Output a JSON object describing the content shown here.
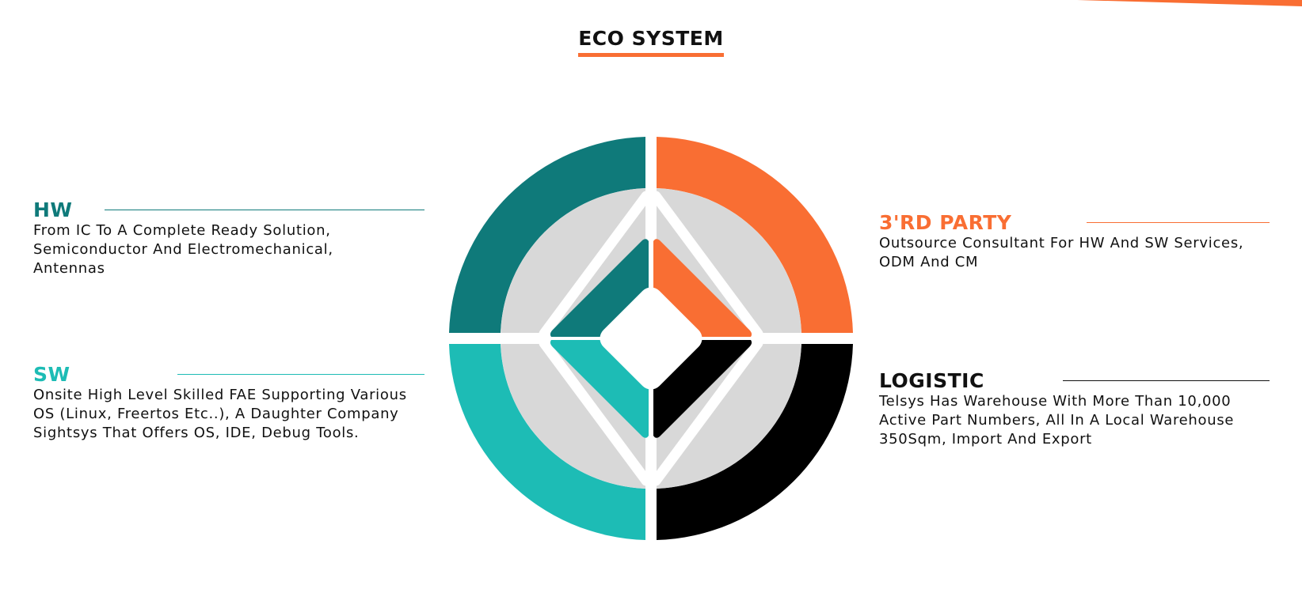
{
  "title": "ECO SYSTEM",
  "colors": {
    "teal_dark": "#0f7a7a",
    "teal_light": "#1dbcb5",
    "orange": "#f96e33",
    "black": "#000000",
    "grey": "#d8d8d8",
    "text": "#111111"
  },
  "blocks": {
    "hw": {
      "title": "HW",
      "description": "From IC To A Complete Ready Solution, Semiconductor And Electromechanical, Antennas"
    },
    "sw": {
      "title": "SW",
      "description": "Onsite High Level Skilled FAE Supporting Various OS (Linux, Freertos Etc..), A Daughter Company Sightsys That Offers OS, IDE, Debug Tools."
    },
    "third_party": {
      "title": "3'RD PARTY",
      "description": "Outsource Consultant For HW And SW Services, ODM And CM"
    },
    "logistic": {
      "title": "LOGISTIC",
      "description": "Telsys Has Warehouse With More Than 10,000 Active Part Numbers, All In A Local Warehouse 350Sqm, Import And Export"
    }
  }
}
